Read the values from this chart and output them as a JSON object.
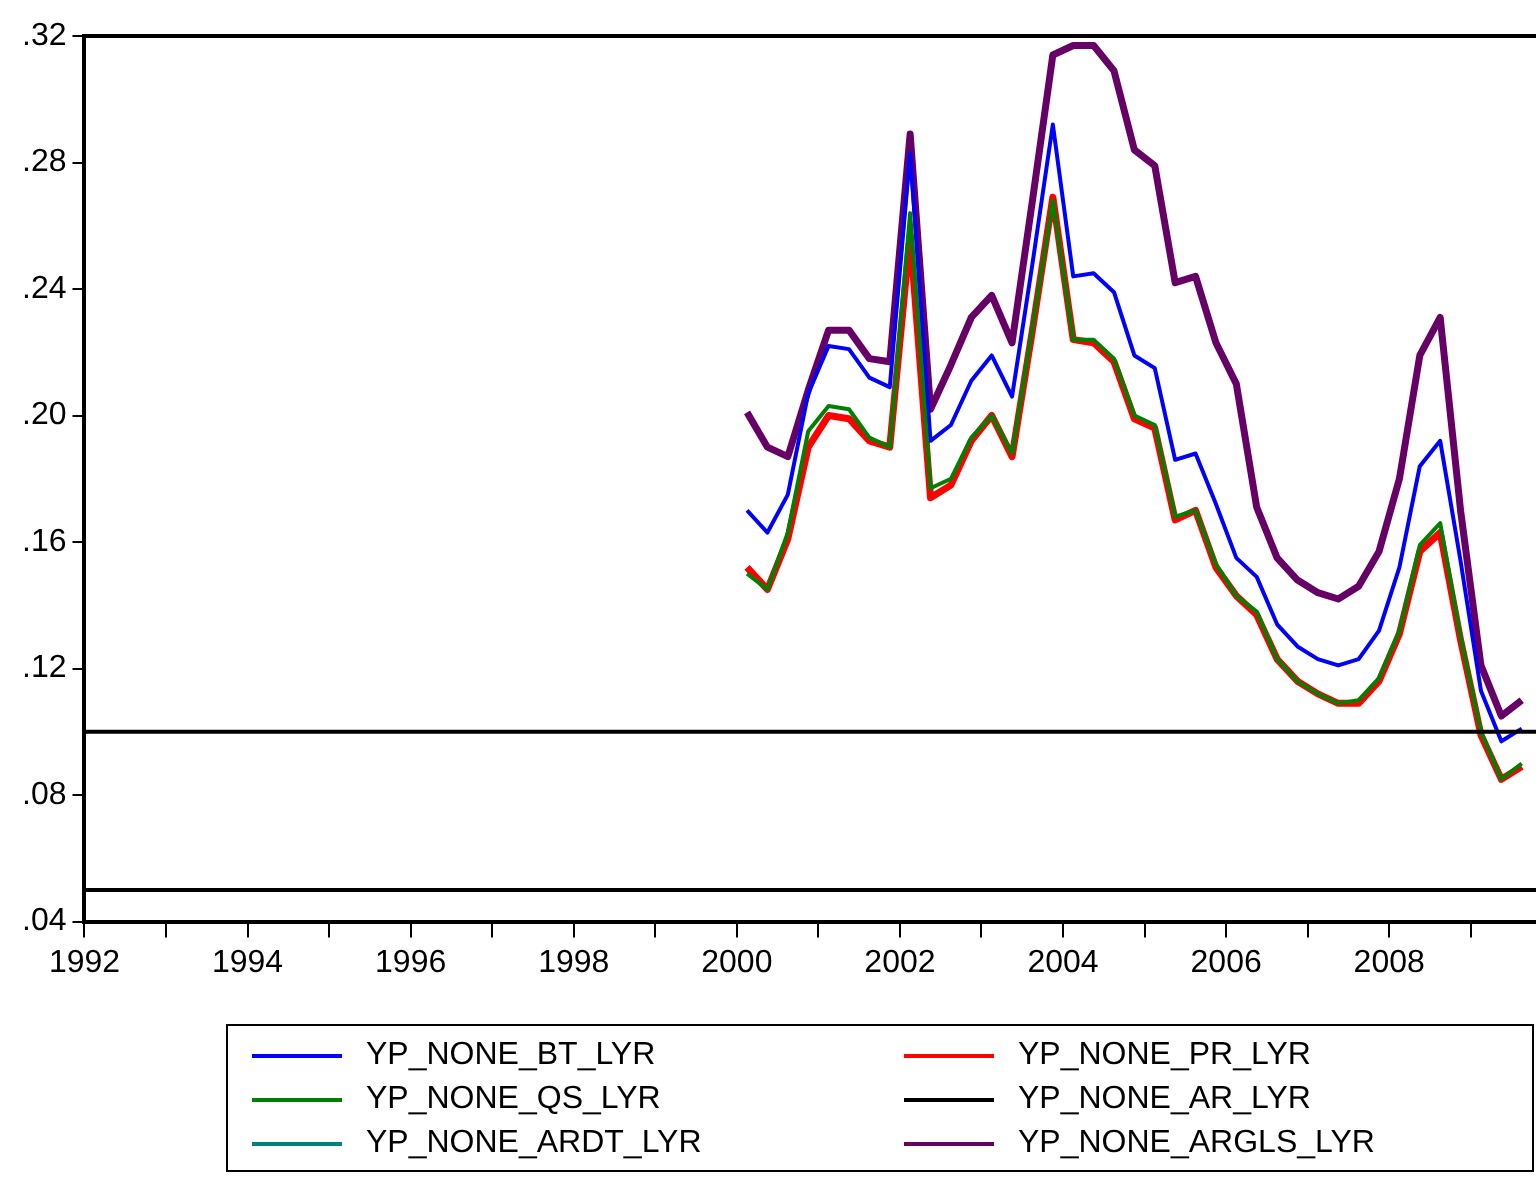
{
  "chart_data": {
    "type": "line",
    "x": [
      2000.125,
      2000.375,
      2000.625,
      2000.875,
      2001.125,
      2001.375,
      2001.625,
      2001.875,
      2002.125,
      2002.375,
      2002.625,
      2002.875,
      2003.125,
      2003.375,
      2003.625,
      2003.875,
      2004.125,
      2004.375,
      2004.625,
      2004.875,
      2005.125,
      2005.375,
      2005.625,
      2005.875,
      2006.125,
      2006.375,
      2006.625,
      2006.875,
      2007.125,
      2007.375,
      2007.625,
      2007.875,
      2008.125,
      2008.375,
      2008.625,
      2008.875,
      2009.125,
      2009.375,
      2009.625
    ],
    "series": [
      {
        "name": "YP_NONE_BT_LYR",
        "color": "#0000ff",
        "values": [
          0.17,
          0.163,
          0.175,
          0.207,
          0.222,
          0.221,
          0.212,
          0.209,
          0.283,
          0.192,
          0.197,
          0.211,
          0.219,
          0.206,
          0.248,
          0.292,
          0.244,
          0.245,
          0.239,
          0.219,
          0.215,
          0.186,
          0.188,
          0.172,
          0.155,
          0.149,
          0.134,
          0.127,
          0.123,
          0.121,
          0.123,
          0.132,
          0.152,
          0.184,
          0.192,
          0.154,
          0.113,
          0.097,
          0.101
        ]
      },
      {
        "name": "YP_NONE_PR_LYR",
        "color": "#ff0000",
        "values": [
          0.152,
          0.145,
          0.161,
          0.19,
          0.2,
          0.199,
          0.192,
          0.19,
          0.257,
          0.174,
          0.178,
          0.192,
          0.2,
          0.187,
          0.227,
          0.269,
          0.224,
          0.223,
          0.217,
          0.199,
          0.196,
          0.167,
          0.17,
          0.152,
          0.143,
          0.137,
          0.123,
          0.116,
          0.112,
          0.109,
          0.109,
          0.116,
          0.131,
          0.157,
          0.163,
          0.129,
          0.099,
          0.085,
          0.089
        ]
      },
      {
        "name": "YP_NONE_QS_LYR",
        "color": "#008000",
        "values": [
          0.15,
          0.145,
          0.163,
          0.195,
          0.203,
          0.202,
          0.193,
          0.19,
          0.264,
          0.177,
          0.18,
          0.193,
          0.2,
          0.188,
          0.228,
          0.268,
          0.224,
          0.224,
          0.218,
          0.2,
          0.197,
          0.168,
          0.17,
          0.153,
          0.143,
          0.138,
          0.123,
          0.116,
          0.112,
          0.109,
          0.11,
          0.117,
          0.132,
          0.159,
          0.166,
          0.13,
          0.1,
          0.085,
          0.09
        ]
      },
      {
        "name": "YP_NONE_AR_LYR",
        "color": "#000000",
        "values": [
          null,
          null,
          null,
          null,
          null,
          null,
          null,
          null,
          null,
          null,
          null,
          null,
          null,
          null,
          null,
          null,
          null,
          null,
          null,
          null,
          null,
          null,
          null,
          null,
          null,
          null,
          null,
          null,
          null,
          null,
          null,
          null,
          null,
          null,
          null,
          null,
          null,
          null,
          null
        ]
      },
      {
        "name": "YP_NONE_ARDT_LYR",
        "color": "#008080",
        "values": [
          null,
          null,
          null,
          null,
          null,
          null,
          null,
          null,
          null,
          null,
          null,
          null,
          null,
          null,
          null,
          null,
          null,
          null,
          null,
          null,
          null,
          null,
          null,
          null,
          null,
          null,
          null,
          null,
          null,
          null,
          null,
          null,
          null,
          null,
          null,
          null,
          null,
          null,
          null
        ]
      },
      {
        "name": "YP_NONE_ARGLS_LYR",
        "color": "#660066",
        "values": [
          0.201,
          0.19,
          0.187,
          0.208,
          0.227,
          0.227,
          0.218,
          0.217,
          0.289,
          0.202,
          0.216,
          0.231,
          0.238,
          0.223,
          0.268,
          0.314,
          0.317,
          0.317,
          0.309,
          0.284,
          0.279,
          0.242,
          0.244,
          0.223,
          0.21,
          0.171,
          0.155,
          0.148,
          0.144,
          0.142,
          0.146,
          0.157,
          0.18,
          0.219,
          0.231,
          0.17,
          0.121,
          0.105,
          0.11
        ]
      }
    ],
    "xlim": [
      1992,
      2009.8
    ],
    "xticks": [
      1992,
      {
        "value": 1993,
        "label": null
      },
      1994,
      {
        "value": 1995,
        "label": null
      },
      1996,
      {
        "value": 1997,
        "label": null
      },
      1998,
      {
        "value": 1999,
        "label": null
      },
      2000,
      {
        "value": 2001,
        "label": null
      },
      2002,
      {
        "value": 2003,
        "label": null
      },
      2004,
      {
        "value": 2005,
        "label": null
      },
      2006,
      {
        "value": 2007,
        "label": null
      },
      2008,
      {
        "value": 2009,
        "label": null
      }
    ],
    "ylim": [
      0.04,
      0.32
    ],
    "yticks": [
      {
        "value": 0.04,
        "label": ".04"
      },
      {
        "value": 0.08,
        "label": ".08"
      },
      {
        "value": 0.12,
        "label": ".12"
      },
      {
        "value": 0.16,
        "label": ".16"
      },
      {
        "value": 0.2,
        "label": ".20"
      },
      {
        "value": 0.24,
        "label": ".24"
      },
      {
        "value": 0.28,
        "label": ".28"
      },
      {
        "value": 0.32,
        "label": ".32"
      }
    ],
    "ref_lines": [
      {
        "axis": "y",
        "value": 0.1,
        "color": "#000000"
      },
      {
        "axis": "y",
        "value": 0.05,
        "color": "#000000"
      }
    ],
    "grid": false,
    "legend": "bottom",
    "marker": "none",
    "line_style": "solid"
  }
}
